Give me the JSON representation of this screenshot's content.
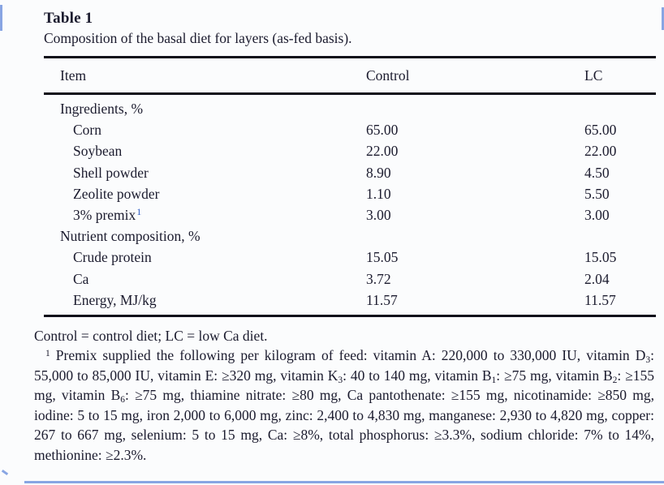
{
  "table": {
    "label": "Table 1",
    "caption": "Composition of the basal diet for layers (as-fed basis).",
    "columns": [
      "Item",
      "Control",
      "LC"
    ],
    "sections": [
      {
        "header": "Ingredients, %",
        "rows": [
          {
            "item": "Corn",
            "control": "65.00",
            "lc": "65.00"
          },
          {
            "item": "Soybean",
            "control": "22.00",
            "lc": "22.00"
          },
          {
            "item": "Shell powder",
            "control": "8.90",
            "lc": "4.50"
          },
          {
            "item": "Zeolite powder",
            "control": "1.10",
            "lc": "5.50"
          },
          {
            "item": "3% premix",
            "marker": "1",
            "control": "3.00",
            "lc": "3.00"
          }
        ]
      },
      {
        "header": "Nutrient composition, %",
        "rows": [
          {
            "item": "Crude protein",
            "control": "15.05",
            "lc": "15.05"
          },
          {
            "item": "Ca",
            "control": "3.72",
            "lc": "2.04"
          },
          {
            "item": "Energy, MJ/kg",
            "control": "11.57",
            "lc": "11.57"
          }
        ]
      }
    ]
  },
  "footnotes": {
    "abbrev": "Control = control diet; LC = low Ca diet.",
    "premix_segments": [
      {
        "sup": "1"
      },
      {
        "text": " Premix supplied the following per kilogram of feed: vitamin A: 220,000 to 330,000 IU, vitamin D"
      },
      {
        "sub": "3"
      },
      {
        "text": ": 55,000 to 85,000 IU, vitamin E: ≥320 mg, vitamin K"
      },
      {
        "sub": "3"
      },
      {
        "text": ": 40 to 140 mg, vitamin B"
      },
      {
        "sub": "1"
      },
      {
        "text": ": ≥75 mg, vitamin B"
      },
      {
        "sub": "2"
      },
      {
        "text": ": ≥155 mg, vitamin B"
      },
      {
        "sub": "6"
      },
      {
        "text": ": ≥75 mg, thiamine nitrate: ≥80 mg, Ca pantothenate: ≥155 mg, nicotinamide: ≥850 mg, iodine: 5 to 15 mg, iron 2,000 to 6,000 mg, zinc: 2,400 to 4,830 mg, manganese: 2,930 to 4,820 mg, copper: 267 to 667 mg, selenium: 5 to 15 mg, Ca: ≥8%, total phosphorus: ≥3.3%, sodium chloride: 7% to 14%, methionine: ≥2.3%."
      }
    ]
  },
  "colors": {
    "footnote_link": "#2e5cc4",
    "edge_artifact": "#6288d9"
  }
}
